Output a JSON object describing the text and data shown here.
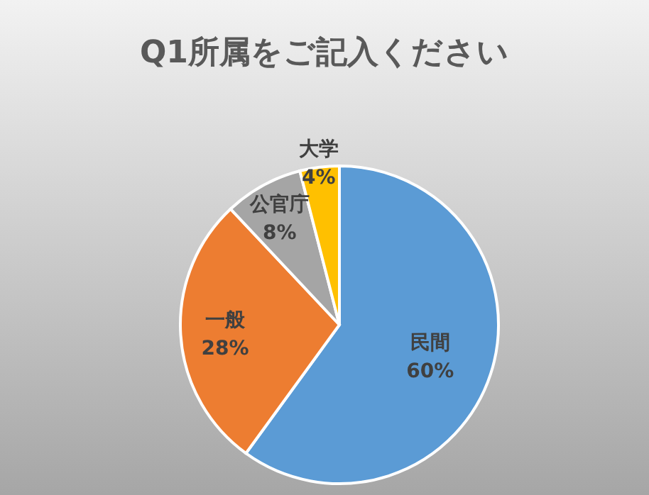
{
  "chart_data": {
    "type": "pie",
    "title": "Q1所属をご記入ください",
    "categories": [
      "民間",
      "一般",
      "公官庁",
      "大学"
    ],
    "values": [
      60,
      28,
      8,
      4
    ],
    "colors": [
      "#5b9bd5",
      "#ed7d31",
      "#a5a5a5",
      "#ffc000"
    ],
    "value_labels": [
      "60%",
      "28%",
      "8%",
      "4%"
    ],
    "legend": false
  }
}
